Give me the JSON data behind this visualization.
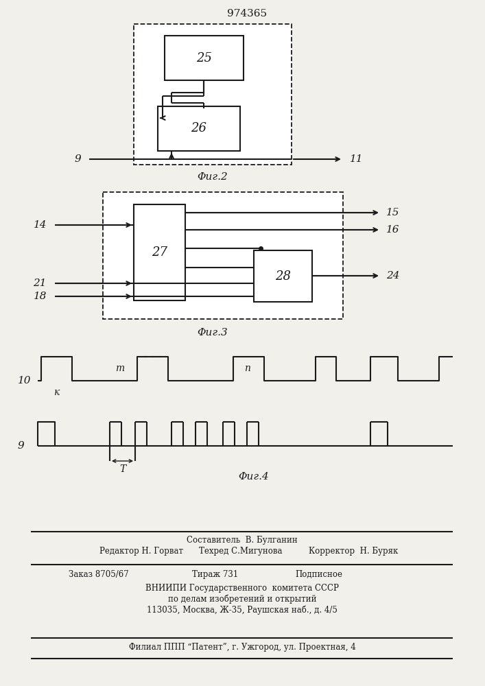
{
  "title": "974365",
  "bg_color": "#f2f0eb",
  "line_color": "#1a1a1a",
  "fig2_caption": "Φиг.2",
  "fig3_caption": "Φиг.3",
  "fig4_caption": "Φиг.4",
  "footer_line0": "Составитель  В. Булганин",
  "footer_line1a": "Редактор Н. Горват",
  "footer_line1b": "Техред С.Мигунова",
  "footer_line1c": "Корректор  Н. Буряк",
  "footer_line2a": "Заказ 8705/67",
  "footer_line2b": "Тираж 731",
  "footer_line2c": "Подписное",
  "footer_line3": "ВНИИПИ Государственного  комитета СССР",
  "footer_line4": "по делам изобретений и открытий",
  "footer_line5": "113035, Москва, Ж-35, Раушская наб., д. 4/5",
  "footer_line6": "Филиал ППП “Патент”, г. Ужгород, ул. Проектная, 4"
}
